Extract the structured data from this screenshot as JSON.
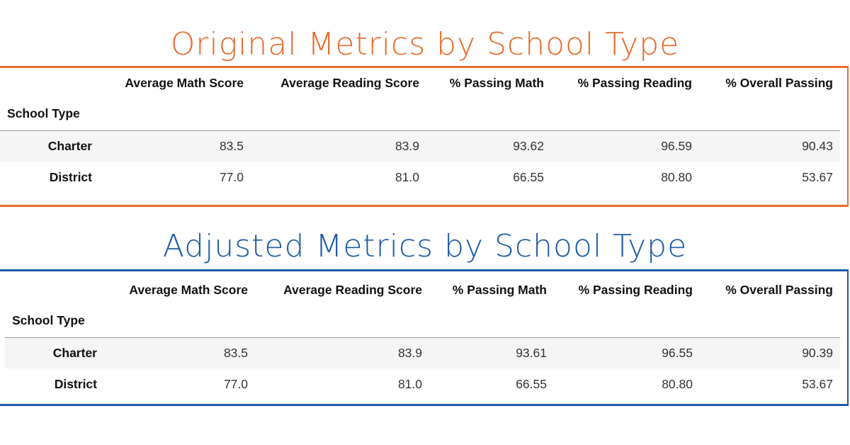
{
  "original": {
    "title": "Original Metrics by School Type",
    "columns": [
      "Average Math Score",
      "Average Reading Score",
      "% Passing Math",
      "% Passing Reading",
      "% Overall Passing"
    ],
    "index_name": "School Type",
    "rows": [
      {
        "label": "Charter",
        "values": [
          "83.5",
          "83.9",
          "93.62",
          "96.59",
          "90.43"
        ]
      },
      {
        "label": "District",
        "values": [
          "77.0",
          "81.0",
          "66.55",
          "80.80",
          "53.67"
        ]
      }
    ],
    "accent_color": "#ea6a2c"
  },
  "adjusted": {
    "title": "Adjusted Metrics by School Type",
    "columns": [
      "Average Math Score",
      "Average Reading Score",
      "% Passing Math",
      "% Passing Reading",
      "% Overall Passing"
    ],
    "index_name": "School Type",
    "rows": [
      {
        "label": "Charter",
        "values": [
          "83.5",
          "83.9",
          "93.61",
          "96.55",
          "90.39"
        ]
      },
      {
        "label": "District",
        "values": [
          "77.0",
          "81.0",
          "66.55",
          "80.80",
          "53.67"
        ]
      }
    ],
    "accent_color": "#1c5aa6"
  }
}
